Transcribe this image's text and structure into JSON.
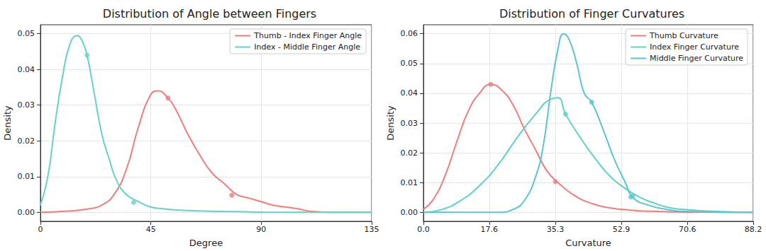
{
  "chart_data": [
    {
      "type": "line",
      "title": "Distribution of Angle between Fingers",
      "x_label": "Degree",
      "y_label": "Density",
      "xlim": [
        0,
        135
      ],
      "xticks": [
        0,
        45,
        90,
        135
      ],
      "ylim": [
        -0.0025,
        0.0525
      ],
      "yticks": [
        {
          "value": 0,
          "label": "0.00"
        },
        {
          "value": 0.01,
          "label": "0.01"
        },
        {
          "value": 0.02,
          "label": "0.02"
        },
        {
          "value": 0.03,
          "label": "0.03"
        },
        {
          "value": 0.04,
          "label": "0.04"
        },
        {
          "value": 0.05,
          "label": "0.05"
        }
      ],
      "grid": true,
      "legend": "upper right",
      "series": [
        {
          "name": "Thumb - Index Finger Angle",
          "color": "#f07c7c",
          "x": [
            0,
            10,
            20,
            25,
            30,
            35,
            40,
            45,
            48,
            52,
            55,
            60,
            65,
            70,
            75,
            80,
            85,
            90,
            95,
            100,
            105,
            110,
            120,
            135
          ],
          "values": [
            0.0,
            0.0003,
            0.001,
            0.002,
            0.005,
            0.012,
            0.024,
            0.033,
            0.034,
            0.032,
            0.029,
            0.022,
            0.016,
            0.011,
            0.008,
            0.005,
            0.004,
            0.003,
            0.002,
            0.0015,
            0.001,
            0.0003,
            0.0,
            0.0
          ],
          "marked_points": [
            [
              52,
              0.032
            ],
            [
              78,
              0.0048
            ]
          ]
        },
        {
          "name": "Index - Middle Finger Angle",
          "color": "#66d1c9",
          "x": [
            0,
            3,
            6,
            9,
            12,
            15,
            17,
            19,
            22,
            25,
            28,
            31,
            35,
            40,
            45,
            50,
            60,
            80,
            100,
            135
          ],
          "values": [
            0.002,
            0.01,
            0.025,
            0.038,
            0.047,
            0.0495,
            0.048,
            0.044,
            0.033,
            0.022,
            0.015,
            0.009,
            0.005,
            0.003,
            0.0015,
            0.001,
            0.0005,
            0.0002,
            0.0,
            0.0
          ],
          "marked_points": [
            [
              19,
              0.044
            ],
            [
              38,
              0.0028
            ]
          ]
        }
      ]
    },
    {
      "type": "line",
      "title": "Distribution of Finger Curvatures",
      "x_label": "Curvature",
      "y_label": "Density",
      "xlim": [
        0,
        88.2
      ],
      "xticks": [
        {
          "value": 0,
          "label": "0.0"
        },
        17.6,
        35.3,
        52.9,
        70.6,
        88.2
      ],
      "ylim": [
        -0.003,
        0.063
      ],
      "yticks": [
        {
          "value": 0,
          "label": "0.00"
        },
        {
          "value": 0.01,
          "label": "0.01"
        },
        {
          "value": 0.02,
          "label": "0.02"
        },
        {
          "value": 0.03,
          "label": "0.03"
        },
        {
          "value": 0.04,
          "label": "0.04"
        },
        {
          "value": 0.05,
          "label": "0.05"
        },
        {
          "value": 0.06,
          "label": "0.06"
        }
      ],
      "grid": true,
      "legend": "upper right",
      "series": [
        {
          "name": "Thumb Curvature",
          "color": "#f07c7c",
          "x": [
            0,
            3,
            6,
            9,
            12,
            15,
            18,
            21,
            24,
            27,
            30,
            33,
            36,
            40,
            45,
            50,
            55,
            60,
            70,
            88.2
          ],
          "values": [
            0.001,
            0.005,
            0.013,
            0.024,
            0.034,
            0.04,
            0.043,
            0.041,
            0.036,
            0.028,
            0.021,
            0.014,
            0.01,
            0.006,
            0.003,
            0.0015,
            0.0008,
            0.0004,
            0.0001,
            0.0
          ],
          "marked_points": [
            [
              18,
              0.043
            ],
            [
              35.3,
              0.0103
            ]
          ]
        },
        {
          "name": "Index Finger Curvature",
          "color": "#5ed2c5",
          "x": [
            0,
            5,
            10,
            15,
            20,
            25,
            30,
            34,
            36,
            38,
            42,
            46,
            50,
            54,
            58,
            62,
            66,
            70,
            75,
            88.2
          ],
          "values": [
            0.0,
            0.001,
            0.004,
            0.009,
            0.016,
            0.025,
            0.033,
            0.038,
            0.0385,
            0.033,
            0.025,
            0.018,
            0.012,
            0.008,
            0.005,
            0.003,
            0.0015,
            0.001,
            0.0005,
            0.0
          ],
          "marked_points": [
            [
              38,
              0.033
            ],
            [
              56,
              0.0055
            ]
          ]
        },
        {
          "name": "Middle Finger Curvature",
          "color": "#5bc3d5",
          "x": [
            0,
            20,
            24,
            27,
            30,
            32,
            34,
            36,
            37.5,
            39,
            41,
            43,
            45,
            48,
            51,
            54,
            56,
            60,
            65,
            70,
            88.2
          ],
          "values": [
            0.0,
            0.0,
            0.001,
            0.004,
            0.012,
            0.022,
            0.04,
            0.055,
            0.06,
            0.058,
            0.05,
            0.04,
            0.037,
            0.028,
            0.018,
            0.01,
            0.005,
            0.0025,
            0.001,
            0.0003,
            0.0
          ],
          "marked_points": [
            [
              45,
              0.037
            ],
            [
              55.5,
              0.0052
            ]
          ]
        }
      ]
    }
  ]
}
